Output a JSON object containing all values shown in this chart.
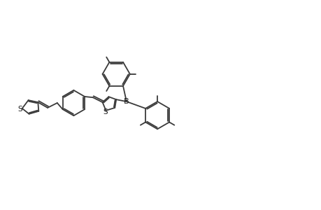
{
  "bg_color": "#ffffff",
  "line_color": "#3a3a3a",
  "text_color": "#1a1a1a",
  "lw": 1.3,
  "figsize": [
    4.6,
    3.0
  ],
  "dpi": 100,
  "xlim": [
    0,
    46
  ],
  "ylim": [
    0,
    30
  ]
}
